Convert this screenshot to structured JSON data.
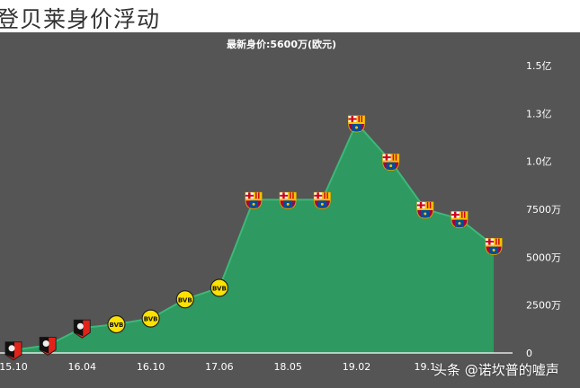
{
  "page": {
    "title": "登贝莱身价浮动",
    "watermark": "头条 @诺坎普的嘘声"
  },
  "chart_data": {
    "type": "area",
    "title": "登贝莱身价浮动",
    "subtitle": "最新身价:5600万(欧元)",
    "xlabel": "",
    "ylabel": "",
    "unit": "万欧元",
    "ylim": [
      0,
      15000
    ],
    "y_ticks": [
      {
        "value": 0,
        "label": "0"
      },
      {
        "value": 2500,
        "label": "2500万"
      },
      {
        "value": 5000,
        "label": "5000万"
      },
      {
        "value": 7500,
        "label": "7500万"
      },
      {
        "value": 10000,
        "label": "1.0亿"
      },
      {
        "value": 12500,
        "label": "1.3亿"
      },
      {
        "value": 15000,
        "label": "1.5亿"
      }
    ],
    "x_tick_labels": [
      "15.10",
      "16.04",
      "16.10",
      "17.06",
      "18.05",
      "19.02",
      "19.1"
    ],
    "grid": false,
    "legend": "none",
    "colors": {
      "fill": "#2e9960",
      "line": "#3cb878",
      "background": "#555555",
      "axis": "#ffffff"
    },
    "points": [
      {
        "club": "Rennes",
        "value": 150
      },
      {
        "club": "Rennes",
        "value": 400
      },
      {
        "club": "Rennes",
        "value": 1300
      },
      {
        "club": "Dortmund",
        "value": 1500
      },
      {
        "club": "Dortmund",
        "value": 1800
      },
      {
        "club": "Dortmund",
        "value": 2800
      },
      {
        "club": "Dortmund",
        "value": 3400
      },
      {
        "club": "Barcelona",
        "value": 8000
      },
      {
        "club": "Barcelona",
        "value": 8000
      },
      {
        "club": "Barcelona",
        "value": 8000
      },
      {
        "club": "Barcelona",
        "value": 12000
      },
      {
        "club": "Barcelona",
        "value": 10000
      },
      {
        "club": "Barcelona",
        "value": 7500
      },
      {
        "club": "Barcelona",
        "value": 7000
      },
      {
        "club": "Barcelona",
        "value": 5600
      }
    ]
  }
}
